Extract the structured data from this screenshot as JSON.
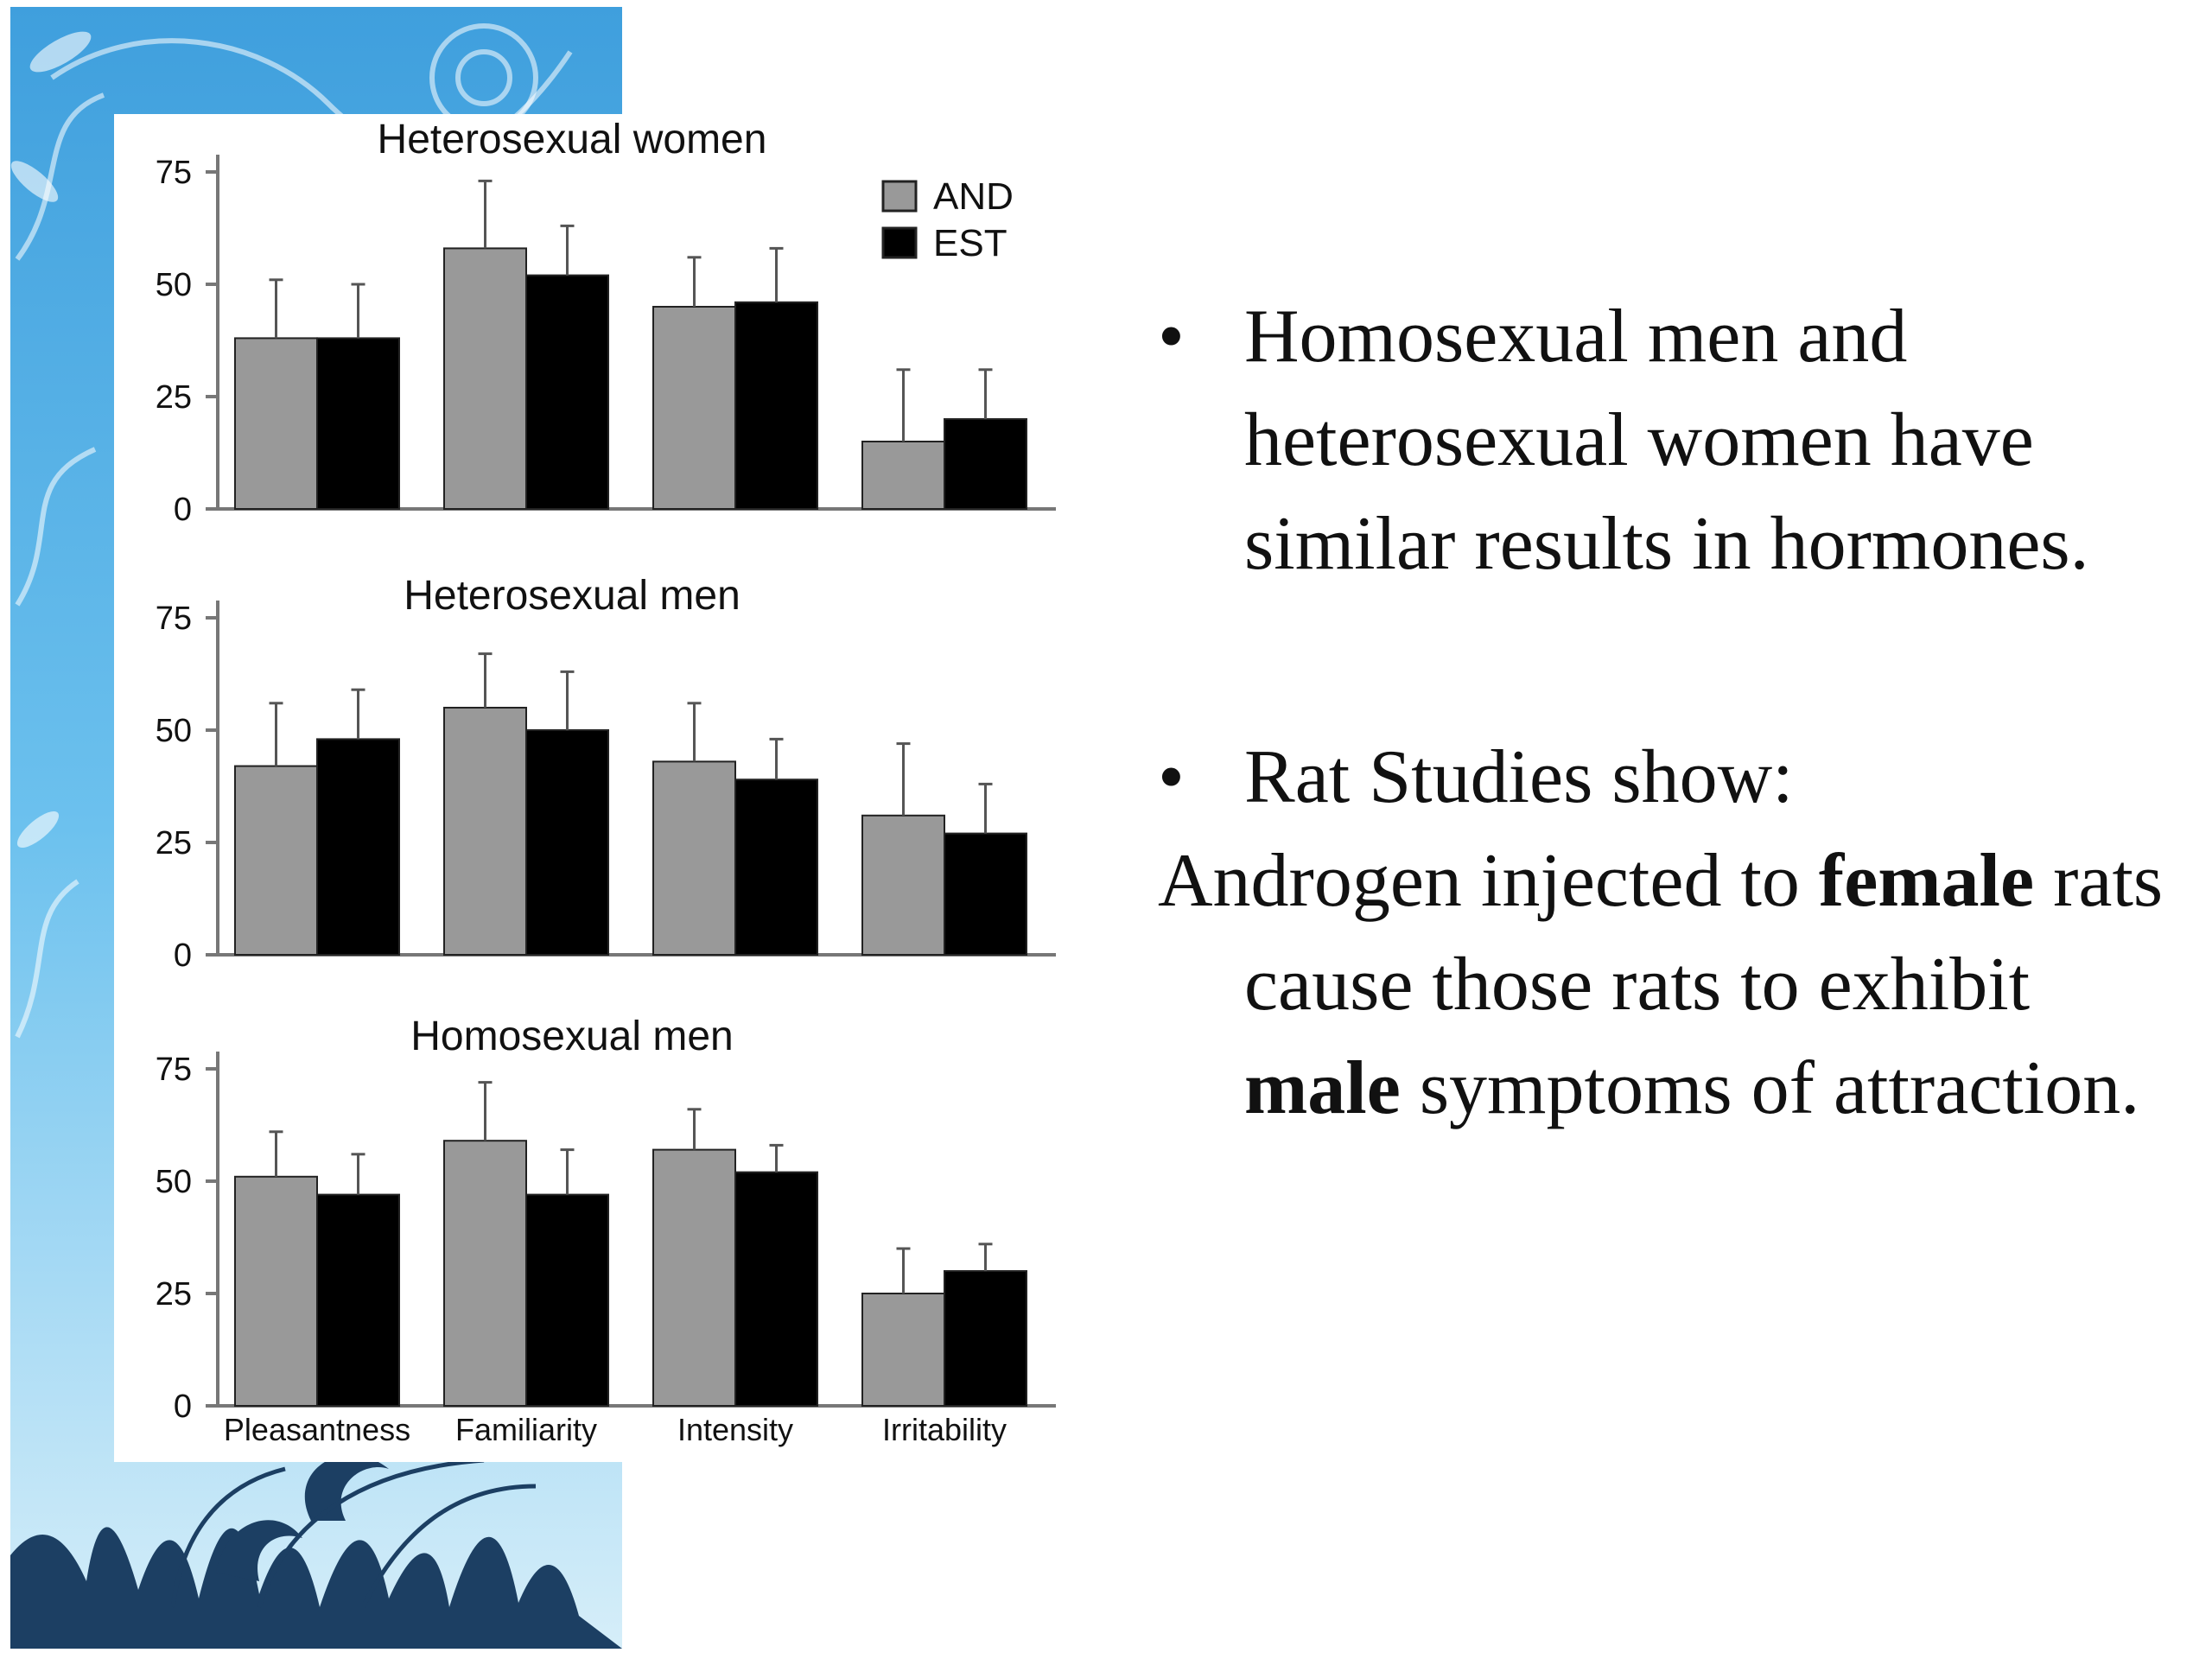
{
  "chart_data": [
    {
      "type": "bar",
      "title": "Heterosexual women",
      "categories": [
        "Pleasantness",
        "Familiarity",
        "Intensity",
        "Irritability"
      ],
      "series": [
        {
          "name": "AND",
          "values": [
            38,
            58,
            45,
            15
          ],
          "errors": [
            13,
            15,
            11,
            16
          ]
        },
        {
          "name": "EST",
          "values": [
            38,
            52,
            46,
            20
          ],
          "errors": [
            12,
            11,
            12,
            11
          ]
        }
      ],
      "ylim": [
        0,
        75
      ],
      "yticks": [
        "0",
        "25",
        "50",
        "75"
      ],
      "legend": "top-right"
    },
    {
      "type": "bar",
      "title": "Heterosexual men",
      "categories": [
        "Pleasantness",
        "Familiarity",
        "Intensity",
        "Irritability"
      ],
      "series": [
        {
          "name": "AND",
          "values": [
            42,
            55,
            43,
            31
          ],
          "errors": [
            14,
            12,
            13,
            16
          ]
        },
        {
          "name": "EST",
          "values": [
            48,
            50,
            39,
            27
          ],
          "errors": [
            11,
            13,
            9,
            11
          ]
        }
      ],
      "ylim": [
        0,
        75
      ],
      "yticks": [
        "0",
        "25",
        "50",
        "75"
      ]
    },
    {
      "type": "bar",
      "title": "Homosexual men",
      "categories": [
        "Pleasantness",
        "Familiarity",
        "Intensity",
        "Irritability"
      ],
      "series": [
        {
          "name": "AND",
          "values": [
            51,
            59,
            57,
            25
          ],
          "errors": [
            10,
            13,
            9,
            10
          ]
        },
        {
          "name": "EST",
          "values": [
            47,
            47,
            52,
            30
          ],
          "errors": [
            9,
            10,
            6,
            6
          ]
        }
      ],
      "ylim": [
        0,
        75
      ],
      "yticks": [
        "0",
        "25",
        "50",
        "75"
      ]
    }
  ],
  "colors": {
    "AND": "#999999",
    "EST": "#000000"
  },
  "text": {
    "bullet_glyph": "•",
    "bullet1": "Homosexual men and heterosexual women have similar results in hormones.",
    "bullet2": "Rat Studies show:",
    "para_start": "Androgen injected to ",
    "para_bold1": "female",
    "para_mid": " rats cause those rats to exhibit ",
    "para_bold2": "male",
    "para_end": " symptoms of attraction."
  }
}
